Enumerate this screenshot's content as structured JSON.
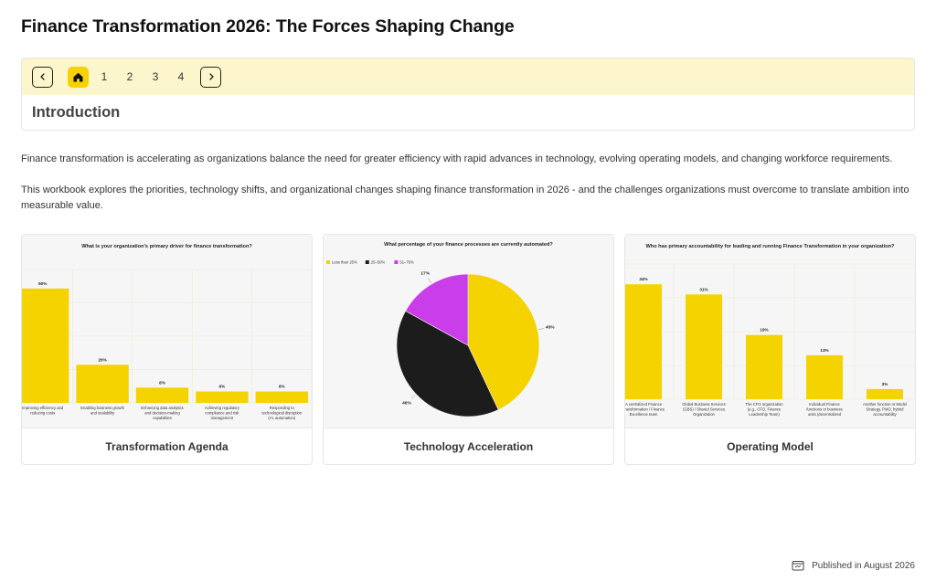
{
  "page": {
    "title": "Finance Transformation 2026: The Forces Shaping Change"
  },
  "nav": {
    "pages": [
      "1",
      "2",
      "3",
      "4"
    ],
    "section_title": "Introduction",
    "icons": {
      "prev": "chevron-left-icon",
      "home": "home-icon",
      "next": "chevron-right-icon"
    },
    "accent_color": "#f5d300",
    "bar_color": "#fdf6cc"
  },
  "intro": {
    "paragraph1": "Finance transformation is accelerating as organizations balance the need for greater efficiency with rapid advances in technology, evolving operating models, and changing workforce requirements.",
    "paragraph2": "This workbook explores the priorities, technology shifts, and organizational changes shaping finance transformation in 2026 - and the challenges organizations must overcome to translate ambition into measurable value."
  },
  "cards": [
    {
      "caption": "Transformation Agenda"
    },
    {
      "caption": "Technology Acceleration"
    },
    {
      "caption": "Operating Model"
    }
  ],
  "chart_data": [
    {
      "type": "bar",
      "title": "What is your organization's primary driver for finance transformation?",
      "categories": [
        "Improving efficiency and reducing costs",
        "Enabling business growth and scalability",
        "Enhancing data analytics and decision-making capabilities",
        "Achieving regulatory compliance and risk management",
        "Responding to technological disruption (AI, automation)"
      ],
      "values": [
        60,
        20,
        8,
        6,
        6
      ],
      "value_labels": [
        "60%",
        "20%",
        "8%",
        "6%",
        "6%"
      ],
      "ylim": [
        0,
        70
      ],
      "bar_color": "#f5d300",
      "grid": true
    },
    {
      "type": "pie",
      "title": "What percentage of your finance processes are currently automated?",
      "series": [
        {
          "name": "Less than 25%",
          "value": 43,
          "label": "43%",
          "color": "#f5d300"
        },
        {
          "name": "25–50%",
          "value": 40,
          "label": "40%",
          "color": "#1c1c1c"
        },
        {
          "name": "51–75%",
          "value": 17,
          "label": "17%",
          "color": "#c93ee8"
        }
      ],
      "legend_position": "top-left"
    },
    {
      "type": "bar",
      "title": "Who has primary accountability for leading and running Finance Transformation in your organization?",
      "categories": [
        "A centralized Finance Transformation / Finance Excellence team",
        "Global Business Services (GBS) / Shared Services Organization",
        "The CFO organization (e.g., CFO, Finance Leadership Team)",
        "Individual Finance functions or business units (decentralized ownership)",
        "Another function or Model Strategy, PMO, hybrid accountability"
      ],
      "values": [
        34,
        31,
        19,
        13,
        3
      ],
      "value_labels": [
        "34%",
        "31%",
        "19%",
        "13%",
        "3%"
      ],
      "ylim": [
        0,
        40
      ],
      "bar_color": "#f5d300",
      "grid": true
    }
  ],
  "footer": {
    "published": "Published in August 2026",
    "icon": "calendar-icon"
  }
}
